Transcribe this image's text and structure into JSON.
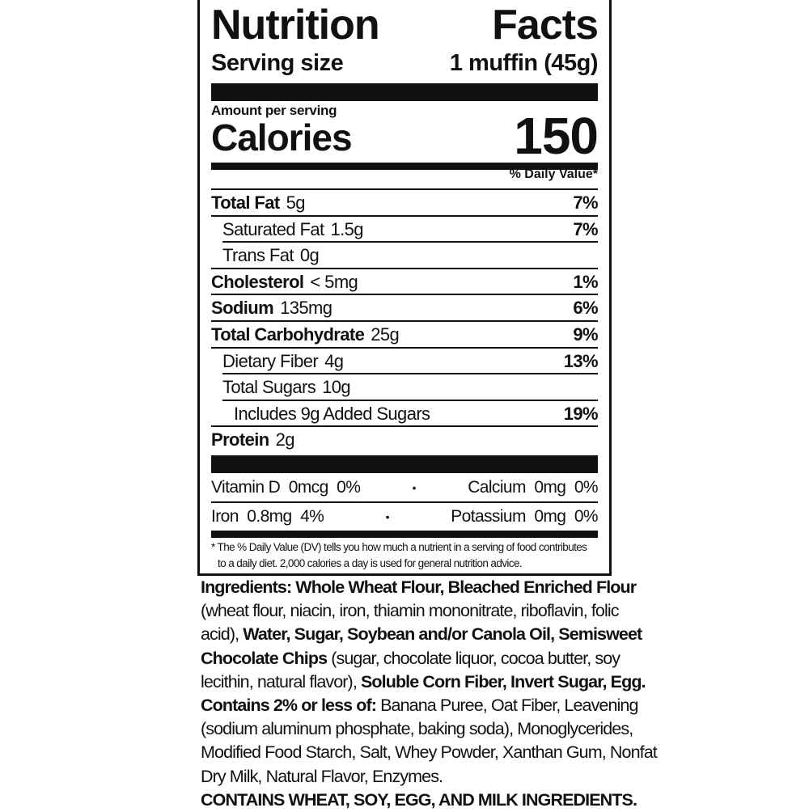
{
  "label": {
    "title_left": "Nutrition",
    "title_right": "Facts",
    "serving_size_label": "Serving size",
    "serving_size_value": "1 muffin (45g)",
    "amount_per_serving": "Amount per serving",
    "calories_label": "Calories",
    "calories_value": "150",
    "daily_value_header": "% Daily Value*",
    "nutrients": [
      {
        "name": "Total Fat",
        "amount": "5g",
        "dv": "7%",
        "bold": true,
        "indent": 0
      },
      {
        "name": "Saturated Fat",
        "amount": "1.5g",
        "dv": "7%",
        "bold": false,
        "indent": 1
      },
      {
        "name": "Trans Fat",
        "amount": "0g",
        "dv": "",
        "bold": false,
        "indent": 1
      },
      {
        "name": "Cholesterol",
        "amount": "< 5mg",
        "dv": "1%",
        "bold": true,
        "indent": 0
      },
      {
        "name": "Sodium",
        "amount": "135mg",
        "dv": "6%",
        "bold": true,
        "indent": 0
      },
      {
        "name": "Total Carbohydrate",
        "amount": "25g",
        "dv": "9%",
        "bold": true,
        "indent": 0
      },
      {
        "name": "Dietary Fiber",
        "amount": "4g",
        "dv": "13%",
        "bold": false,
        "indent": 1
      },
      {
        "name": "Total Sugars",
        "amount": "10g",
        "dv": "",
        "bold": false,
        "indent": 1
      },
      {
        "name": "Includes 9g Added Sugars",
        "amount": "",
        "dv": "19%",
        "bold": false,
        "indent": 2
      },
      {
        "name": "Protein",
        "amount": "2g",
        "dv": "",
        "bold": true,
        "indent": 0
      }
    ],
    "vitamins": [
      {
        "left": "Vitamin D  0mcg  0%",
        "right": "Calcium  0mg  0%"
      },
      {
        "left": "Iron  0.8mg  4%",
        "right": "Potassium  0mg  0%"
      }
    ],
    "separator": "•",
    "footnote_line1": "* The % Daily Value (DV) tells you how much a nutrient in a serving of food contributes",
    "footnote_line2": "to a daily diet. 2,000 calories a day is used for general nutrition advice."
  },
  "ingredients": [
    [
      {
        "t": "Ingredients: Whole Wheat Flour, Bleached Enriched Flour",
        "b": true
      }
    ],
    [
      {
        "t": "(wheat flour, niacin, iron, thiamin mononitrate, riboflavin, folic",
        "b": false
      }
    ],
    [
      {
        "t": "acid), ",
        "b": false
      },
      {
        "t": "Water, Sugar, Soybean and/or Canola Oil, Semisweet",
        "b": true
      }
    ],
    [
      {
        "t": "Chocolate Chips",
        "b": true
      },
      {
        "t": " (sugar, chocolate liquor, cocoa butter, soy",
        "b": false
      }
    ],
    [
      {
        "t": "lecithin, natural flavor), ",
        "b": false
      },
      {
        "t": "Soluble Corn Fiber, Invert Sugar, Egg.",
        "b": true
      }
    ],
    [
      {
        "t": "Contains 2% or less of:",
        "b": true
      },
      {
        "t": " Banana Puree, Oat Fiber, Leavening",
        "b": false
      }
    ],
    [
      {
        "t": "(sodium aluminum phosphate, baking soda), Monoglycerides,",
        "b": false
      }
    ],
    [
      {
        "t": "Modified Food Starch, Salt, Whey Powder, Xanthan Gum, Nonfat",
        "b": false
      }
    ],
    [
      {
        "t": "Dry Milk, Natural Flavor, Enzymes.",
        "b": false
      }
    ],
    [
      {
        "t": "CONTAINS WHEAT, SOY, EGG, AND MILK INGREDIENTS.",
        "b": true
      }
    ]
  ]
}
